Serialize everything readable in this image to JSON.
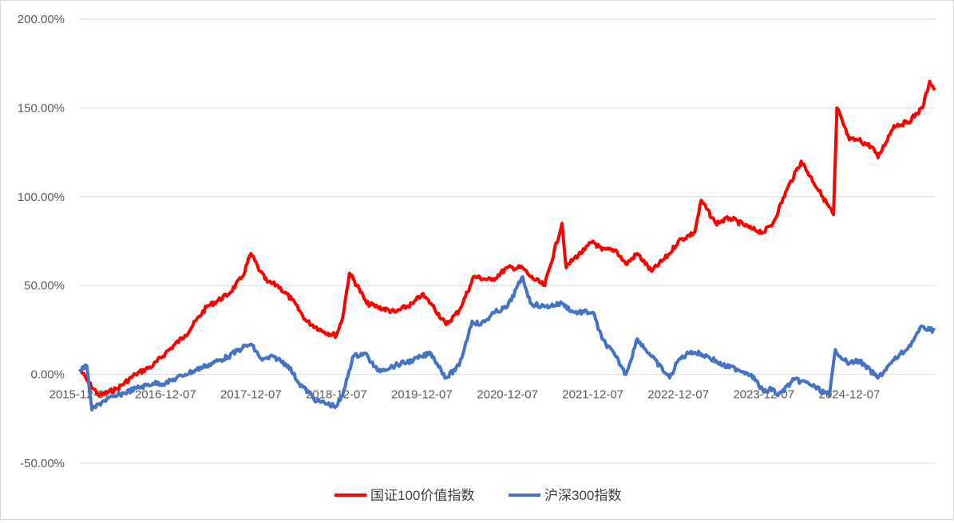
{
  "chart_data": {
    "type": "line",
    "title": "",
    "xlabel": "",
    "ylabel": "",
    "y_unit": "%",
    "ylim": [
      -50,
      200
    ],
    "y_ticks": [
      "200.00%",
      "150.00%",
      "100.00%",
      "50.00%",
      "0.00%",
      "-50.00%"
    ],
    "y_tick_values": [
      200,
      150,
      100,
      50,
      0,
      -50
    ],
    "xlim": [
      "2015-12-07",
      "2025-12-07"
    ],
    "x_ticks": [
      "2015-12-07",
      "2016-12-07",
      "2017-12-07",
      "2018-12-07",
      "2019-12-07",
      "2020-12-07",
      "2021-12-07",
      "2022-12-07",
      "2023-12-07",
      "2024-12-07"
    ],
    "grid": "horizontal",
    "legend_position": "bottom",
    "series": [
      {
        "name": "国证100价值指数",
        "color": "#ff0000",
        "x": [
          "2015-12-07",
          "2016-01-15",
          "2016-02-29",
          "2016-05-15",
          "2016-08-01",
          "2016-10-15",
          "2016-12-07",
          "2017-03-01",
          "2017-06-01",
          "2017-09-01",
          "2017-11-01",
          "2017-12-07",
          "2018-01-15",
          "2018-02-15",
          "2018-04-01",
          "2018-06-01",
          "2018-08-01",
          "2018-10-15",
          "2018-12-07",
          "2019-01-03",
          "2019-02-01",
          "2019-03-15",
          "2019-04-15",
          "2019-06-01",
          "2019-08-15",
          "2019-11-01",
          "2019-12-07",
          "2020-01-15",
          "2020-03-20",
          "2020-05-15",
          "2020-07-01",
          "2020-07-15",
          "2020-09-30",
          "2020-12-07",
          "2021-02-10",
          "2021-03-15",
          "2021-05-15",
          "2021-07-28",
          "2021-08-15",
          "2021-09-15",
          "2021-11-01",
          "2021-12-07",
          "2022-01-15",
          "2022-03-15",
          "2022-04-27",
          "2022-06-15",
          "2022-08-15",
          "2022-10-31",
          "2022-12-07",
          "2023-02-15",
          "2023-03-15",
          "2023-05-15",
          "2023-07-15",
          "2023-10-15",
          "2023-12-07",
          "2024-01-15",
          "2024-03-15",
          "2024-05-15",
          "2024-08-15",
          "2024-09-30",
          "2024-10-15",
          "2024-12-07",
          "2025-01-15",
          "2025-03-15",
          "2025-04-08",
          "2025-06-15",
          "2025-08-15",
          "2025-10-15",
          "2025-11-15",
          "2025-12-07"
        ],
        "values": [
          3,
          -5,
          -12,
          -8,
          0,
          5,
          12,
          22,
          38,
          45,
          55,
          68,
          58,
          52,
          50,
          42,
          30,
          24,
          22,
          32,
          57,
          48,
          40,
          38,
          35,
          40,
          45,
          40,
          28,
          36,
          50,
          55,
          53,
          60,
          60,
          55,
          50,
          85,
          60,
          65,
          70,
          75,
          70,
          70,
          62,
          68,
          58,
          68,
          75,
          80,
          98,
          85,
          88,
          82,
          80,
          85,
          104,
          120,
          100,
          90,
          150,
          132,
          132,
          128,
          122,
          140,
          142,
          150,
          165,
          160
        ]
      },
      {
        "name": "沪深300指数",
        "color": "#4472c4",
        "x": [
          "2015-12-07",
          "2016-01-05",
          "2016-01-28",
          "2016-03-15",
          "2016-05-15",
          "2016-08-01",
          "2016-10-15",
          "2016-12-07",
          "2017-03-01",
          "2017-06-01",
          "2017-09-01",
          "2017-11-01",
          "2017-12-07",
          "2018-01-24",
          "2018-03-15",
          "2018-05-15",
          "2018-07-01",
          "2018-09-15",
          "2018-12-07",
          "2019-01-03",
          "2019-02-15",
          "2019-04-08",
          "2019-06-01",
          "2019-08-15",
          "2019-11-01",
          "2019-12-07",
          "2020-01-15",
          "2020-03-20",
          "2020-05-15",
          "2020-07-09",
          "2020-08-15",
          "2020-10-15",
          "2020-12-07",
          "2021-02-10",
          "2021-03-15",
          "2021-05-15",
          "2021-07-28",
          "2021-09-15",
          "2021-12-07",
          "2022-01-15",
          "2022-03-15",
          "2022-04-27",
          "2022-06-15",
          "2022-08-15",
          "2022-10-31",
          "2022-12-07",
          "2023-01-31",
          "2023-04-15",
          "2023-06-15",
          "2023-08-15",
          "2023-10-15",
          "2023-12-07",
          "2024-01-15",
          "2024-02-05",
          "2024-04-15",
          "2024-06-15",
          "2024-09-13",
          "2024-10-08",
          "2024-11-15",
          "2024-12-07",
          "2025-01-15",
          "2025-04-08",
          "2025-06-15",
          "2025-08-15",
          "2025-10-15",
          "2025-11-15",
          "2025-12-07"
        ],
        "values": [
          2,
          5,
          -20,
          -15,
          -12,
          -8,
          -5,
          -5,
          0,
          5,
          10,
          15,
          17,
          8,
          10,
          5,
          -5,
          -15,
          -18,
          -12,
          10,
          12,
          2,
          5,
          8,
          10,
          12,
          -2,
          5,
          30,
          28,
          35,
          38,
          55,
          40,
          38,
          40,
          35,
          35,
          20,
          10,
          0,
          20,
          10,
          -2,
          8,
          13,
          10,
          5,
          3,
          0,
          -10,
          -8,
          -12,
          -3,
          -5,
          -12,
          14,
          8,
          6,
          8,
          -2,
          8,
          15,
          27,
          25,
          25
        ]
      }
    ]
  }
}
